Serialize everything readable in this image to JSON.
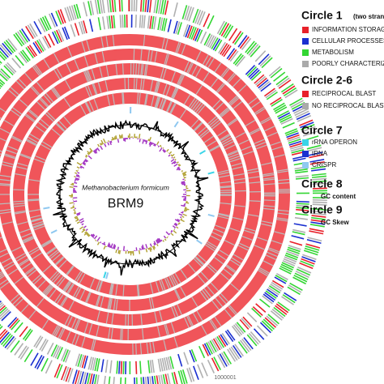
{
  "legend": {
    "circle1": {
      "title": "Circle 1",
      "subtitle": "(two strands)",
      "items": [
        "INFORMATION STORAGE",
        "CELLULAR PROCESSES",
        "METABOLISM",
        "POORLY CHARACTERIZED"
      ]
    },
    "circle2_6": {
      "title": "Circle 2-6",
      "items": [
        "RECIPROCAL BLAST",
        "NO RECIPROCAL BLAST"
      ]
    },
    "circle7": {
      "title": "Circle 7",
      "items": [
        "rRNA OPERON",
        "tRNA",
        "CRISPR"
      ]
    },
    "circle8": {
      "title": "Circle 8",
      "subtitle": "GC content"
    },
    "circle9": {
      "title": "Circle 9",
      "subtitle": "GC Skew"
    }
  },
  "center": {
    "organism": "Methanobacterium formicum",
    "strain": "BRM9"
  },
  "position_label": "1000001"
}
